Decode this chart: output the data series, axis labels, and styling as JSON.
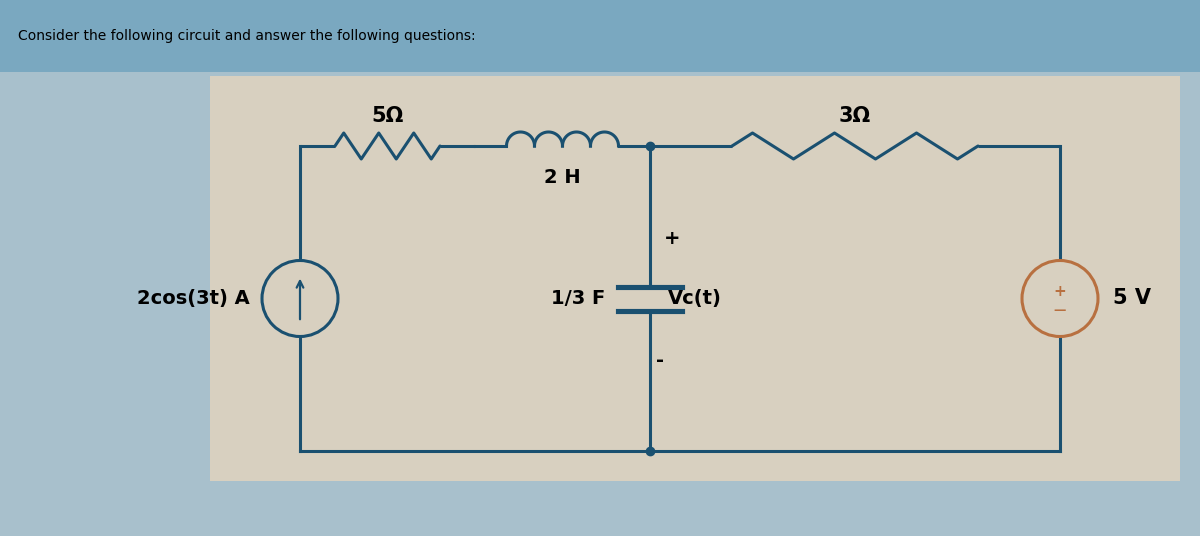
{
  "header_text": "Consider the following circuit and answer the following questions:",
  "header_bg": "#7aa8c0",
  "body_bg": "#a8c0cc",
  "circuit_bg": "#d8d0c0",
  "circuit_color": "#1a5070",
  "line_color": "#1a5070",
  "title_fontsize": 10,
  "label_fontsize": 14,
  "resistor_5_label": "5Ω",
  "resistor_3_label": "3Ω",
  "inductor_label": "2 H",
  "capacitor_label": "1/3 F",
  "vc_label": "Vc(t)",
  "source_label": "2cos(3t) A",
  "voltage_label": "5 V",
  "plus_sign": "+",
  "minus_sign": "-",
  "vs_color": "#b87040"
}
